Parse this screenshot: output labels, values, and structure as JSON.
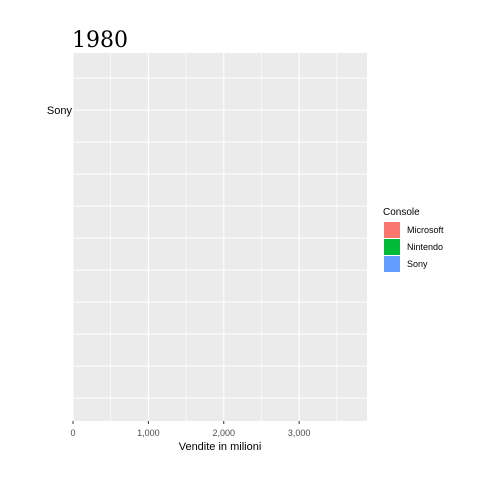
{
  "chart_data": {
    "type": "bar",
    "orientation": "horizontal",
    "title": "1980",
    "xlabel": "Vendite in milioni",
    "ylabel": "",
    "xlim": [
      0,
      3900
    ],
    "x_ticks": [
      0,
      1000,
      2000,
      3000
    ],
    "x_tick_labels": [
      "0",
      "1,000",
      "2,000",
      "3,000"
    ],
    "categories": [
      "Sony"
    ],
    "values": [
      0
    ],
    "bar_colors": [
      "#619CFF"
    ],
    "grid": true,
    "legend": {
      "title": "Console",
      "position": "right",
      "entries": [
        {
          "label": "Microsoft",
          "color": "#F8766D"
        },
        {
          "label": "Nintendo",
          "color": "#00BA38"
        },
        {
          "label": "Sony",
          "color": "#619CFF"
        }
      ]
    },
    "panel_background": "#EBEBEB"
  }
}
